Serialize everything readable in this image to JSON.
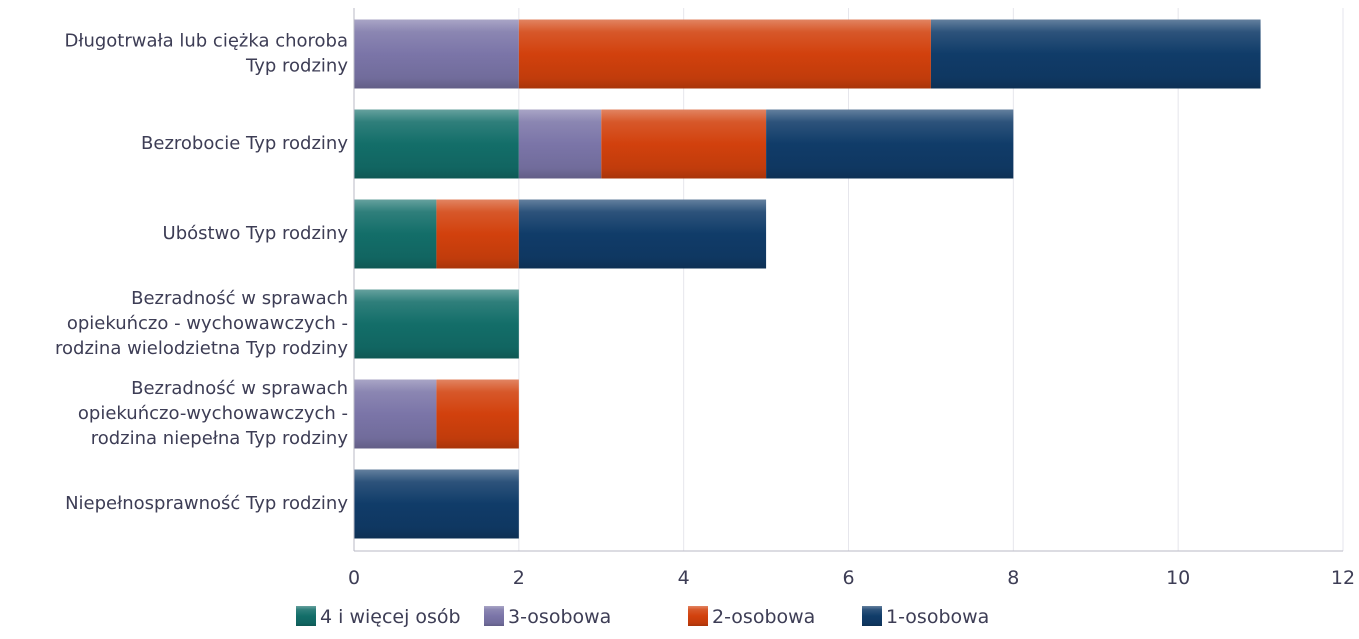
{
  "chart_data": {
    "type": "bar",
    "orientation": "horizontal",
    "stacked": true,
    "categories": [
      [
        "Długotrwała lub ciężka choroba",
        "Typ rodziny"
      ],
      [
        "Bezrobocie Typ rodziny"
      ],
      [
        "Ubóstwo Typ rodziny"
      ],
      [
        "Bezradność w sprawach",
        "opiekuńczo - wychowawczych -",
        "rodzina wielodzietna Typ rodziny"
      ],
      [
        "Bezradność w sprawach",
        "opiekuńczo-wychowawczych -",
        "rodzina niepełna Typ rodziny"
      ],
      [
        "Niepełnosprawność Typ rodziny"
      ]
    ],
    "series": [
      {
        "name": "4  i więcej osób",
        "color": "#136e69",
        "values": [
          0,
          2,
          1,
          2,
          0,
          0
        ]
      },
      {
        "name": "3-osobowa",
        "color": "#7b75a8",
        "values": [
          2,
          1,
          0,
          0,
          1,
          0
        ]
      },
      {
        "name": "2-osobowa",
        "color": "#d2410d",
        "values": [
          5,
          2,
          1,
          0,
          1,
          0
        ]
      },
      {
        "name": "1-osobowa",
        "color": "#103c69",
        "values": [
          4,
          3,
          3,
          0,
          0,
          2
        ]
      }
    ],
    "xlim": [
      0,
      12
    ],
    "xticks": [
      "0",
      "2",
      "4",
      "6",
      "8",
      "10",
      "12"
    ],
    "grid": true,
    "legend_position": "bottom"
  }
}
